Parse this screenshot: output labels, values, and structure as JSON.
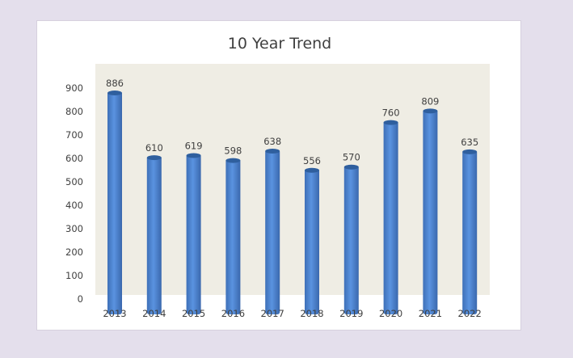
{
  "chart_data": {
    "type": "bar",
    "title": "10 Year Trend",
    "categories": [
      "2013",
      "2014",
      "2015",
      "2016",
      "2017",
      "2018",
      "2019",
      "2020",
      "2021",
      "2022"
    ],
    "values": [
      886,
      610,
      619,
      598,
      638,
      556,
      570,
      760,
      809,
      635
    ],
    "ylim": [
      0,
      900
    ],
    "yticks": [
      0,
      100,
      200,
      300,
      400,
      500,
      600,
      700,
      800,
      900
    ],
    "xlabel": "",
    "ylabel": "",
    "grid": false,
    "legend": "none",
    "colors": {
      "bar": "#4f86d6",
      "bar_dark": "#2f5f9e",
      "plot_background": "#efede4",
      "text": "#404040"
    }
  }
}
